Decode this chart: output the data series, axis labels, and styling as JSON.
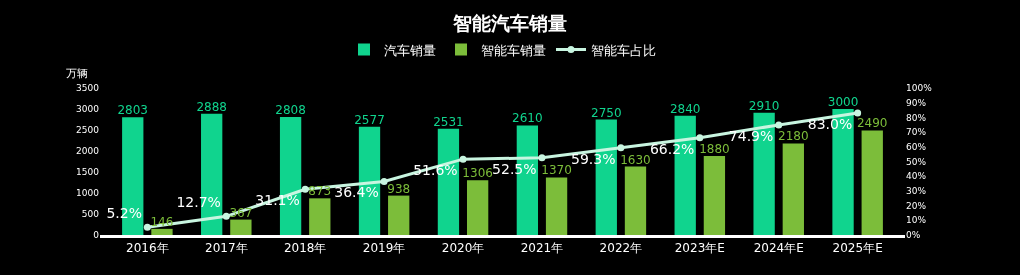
{
  "chart_data": {
    "type": "bar",
    "title": "智能汽车销量",
    "ylabel": "万辆",
    "categories": [
      "2016年",
      "2017年",
      "2018年",
      "2019年",
      "2020年",
      "2021年",
      "2022年",
      "2023年E",
      "2024年E",
      "2025年E"
    ],
    "series": [
      {
        "name": "汽车销量",
        "color": "#10d48e",
        "values": [
          2803,
          2888,
          2808,
          2577,
          2531,
          2610,
          2750,
          2840,
          2910,
          3000
        ],
        "value_labels": [
          "2803",
          "2888",
          "2808",
          "2577",
          "2531",
          "2610",
          "2750",
          "2840",
          "2910",
          "3000"
        ]
      },
      {
        "name": "智能车销量",
        "color": "#7cbd3a",
        "values": [
          146,
          367,
          873,
          938,
          1306,
          1370,
          1630,
          1880,
          2180,
          2490
        ],
        "value_labels": [
          "146",
          "367",
          "873",
          "938",
          "1306",
          "1370",
          "1630",
          "1880",
          "2180",
          "2490"
        ]
      },
      {
        "name": "智能车占比",
        "type": "line",
        "axis": "y2",
        "color": "#c8f5e0",
        "values": [
          5.2,
          12.7,
          31.1,
          36.4,
          51.6,
          52.5,
          59.3,
          66.2,
          74.9,
          83.0
        ],
        "value_labels": [
          "5.2%",
          "12.7%",
          "31.1%",
          "36.4%",
          "51.6%",
          "52.5%",
          "59.3%",
          "66.2%",
          "74.9%",
          "83.0%"
        ]
      }
    ],
    "ylim": [
      0,
      3500
    ],
    "yticks": [
      0,
      500,
      1000,
      1500,
      2000,
      2500,
      3000,
      3500
    ],
    "y2lim": [
      0,
      100
    ],
    "y2ticks": [
      {
        "value": 0,
        "label": "0%"
      },
      {
        "value": 10,
        "label": "10%"
      },
      {
        "value": 20,
        "label": "20%"
      },
      {
        "value": 30,
        "label": "30%"
      },
      {
        "value": 40,
        "label": "40%"
      },
      {
        "value": 50,
        "label": "50%"
      },
      {
        "value": 60,
        "label": "60%"
      },
      {
        "value": 70,
        "label": "70%"
      },
      {
        "value": 80,
        "label": "80%"
      },
      {
        "value": 90,
        "label": "90%"
      },
      {
        "value": 100,
        "label": "100%"
      }
    ],
    "legend": "top",
    "marker": "circle",
    "grid": false
  }
}
